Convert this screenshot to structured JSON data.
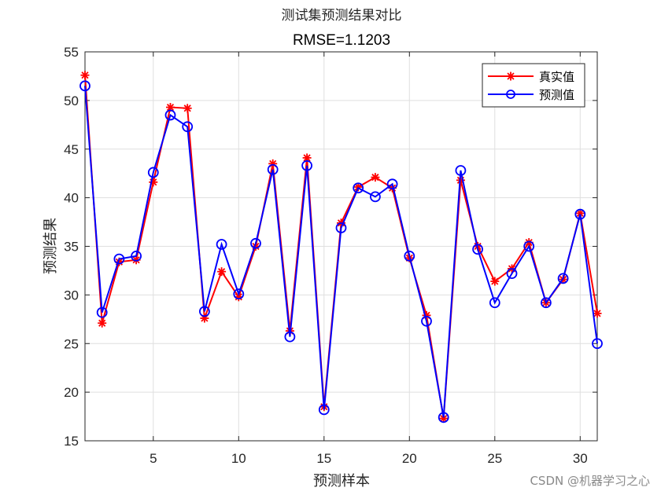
{
  "chart_data": {
    "type": "line",
    "title": "测试集预测结果对比",
    "subtitle": "RMSE=1.1203",
    "xlabel": "预测样本",
    "ylabel": "预测结果",
    "xlim": [
      1,
      31
    ],
    "ylim": [
      15,
      55
    ],
    "xticks": [
      5,
      10,
      15,
      20,
      25,
      30
    ],
    "yticks": [
      15,
      20,
      25,
      30,
      35,
      40,
      45,
      50,
      55
    ],
    "grid": true,
    "legend_position": "top-right",
    "x": [
      1,
      2,
      3,
      4,
      5,
      6,
      7,
      8,
      9,
      10,
      11,
      12,
      13,
      14,
      15,
      16,
      17,
      18,
      19,
      20,
      21,
      22,
      23,
      24,
      25,
      26,
      27,
      28,
      29,
      30,
      31
    ],
    "series": [
      {
        "name": "真实值",
        "color": "#ff0000",
        "marker": "asterisk",
        "values": [
          52.6,
          27.1,
          33.4,
          33.6,
          41.6,
          49.3,
          49.2,
          27.6,
          32.4,
          29.8,
          35.0,
          43.5,
          26.3,
          44.1,
          18.5,
          37.4,
          41.1,
          42.1,
          41.0,
          33.8,
          27.9,
          17.3,
          41.8,
          35.0,
          31.4,
          32.7,
          35.4,
          29.2,
          31.6,
          38.4,
          28.1
        ]
      },
      {
        "name": "预测值",
        "color": "#0000ff",
        "marker": "circle",
        "values": [
          51.5,
          28.2,
          33.7,
          34.0,
          42.6,
          48.5,
          47.3,
          28.3,
          35.2,
          30.1,
          35.3,
          42.9,
          25.7,
          43.3,
          18.2,
          36.9,
          41.0,
          40.1,
          41.4,
          34.0,
          27.3,
          17.4,
          42.8,
          34.7,
          29.2,
          32.2,
          35.0,
          29.2,
          31.7,
          38.3,
          25.0
        ]
      }
    ]
  },
  "watermark": "CSDN @机器学习之心"
}
